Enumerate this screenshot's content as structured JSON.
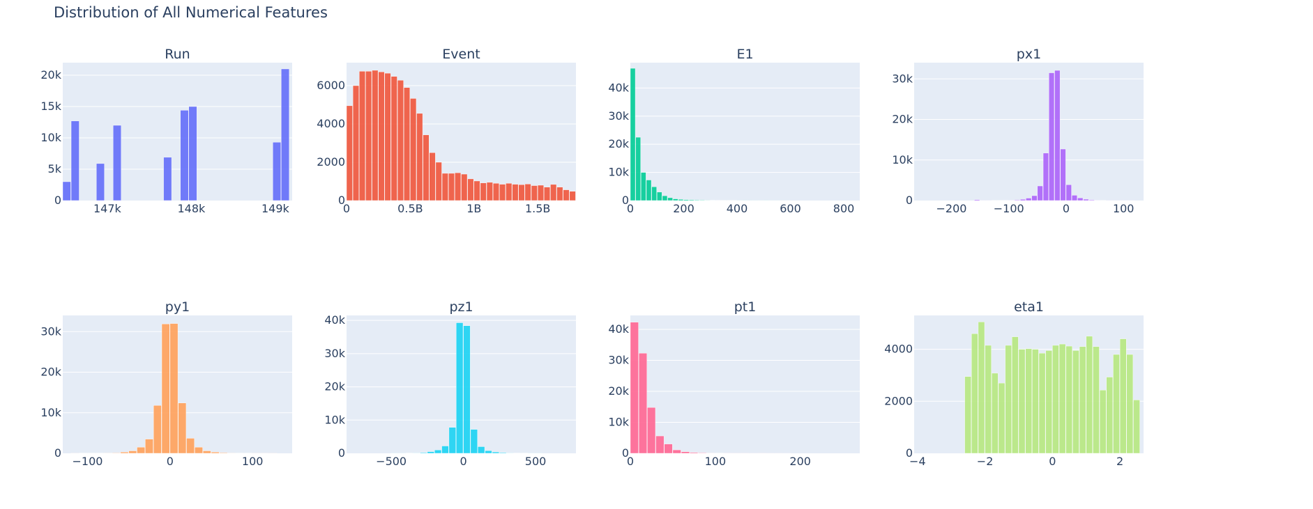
{
  "figure_title": "Distribution of All Numerical Features",
  "colors": {
    "plot_bg": "#e5ecf6",
    "grid": "#ffffff",
    "text": "#2a3f5f"
  },
  "chart_data": [
    {
      "type": "bar",
      "title": "Run",
      "color": "#636efa",
      "xlim": [
        146470,
        149200
      ],
      "ylim": [
        0,
        22000
      ],
      "x_ticks": [
        {
          "v": 147000,
          "label": "147k"
        },
        {
          "v": 148000,
          "label": "148k"
        },
        {
          "v": 149000,
          "label": "149k"
        }
      ],
      "y_ticks": [
        {
          "v": 0,
          "label": "0"
        },
        {
          "v": 5000,
          "label": "5k"
        },
        {
          "v": 10000,
          "label": "10k"
        },
        {
          "v": 15000,
          "label": "15k"
        },
        {
          "v": 20000,
          "label": "20k"
        }
      ],
      "bin_width": 100,
      "bins": [
        [
          146470,
          3000
        ],
        [
          146570,
          12700
        ],
        [
          146870,
          5900
        ],
        [
          147070,
          12000
        ],
        [
          147670,
          6900
        ],
        [
          147870,
          14400
        ],
        [
          147970,
          15000
        ],
        [
          148970,
          9300
        ],
        [
          149070,
          21000
        ]
      ]
    },
    {
      "type": "bar",
      "title": "Event",
      "color": "#ef553b",
      "xlim": [
        0,
        1800000000
      ],
      "ylim": [
        0,
        7200
      ],
      "x_ticks": [
        {
          "v": 0,
          "label": "0"
        },
        {
          "v": 500000000,
          "label": "0.5B"
        },
        {
          "v": 1000000000,
          "label": "1B"
        },
        {
          "v": 1500000000,
          "label": "1.5B"
        }
      ],
      "y_ticks": [
        {
          "v": 0,
          "label": "0"
        },
        {
          "v": 2000,
          "label": "2000"
        },
        {
          "v": 4000,
          "label": "4000"
        },
        {
          "v": 6000,
          "label": "6000"
        }
      ],
      "start": 0,
      "bin_width": 50000000,
      "values": [
        4950,
        6000,
        6750,
        6750,
        6800,
        6720,
        6650,
        6480,
        6280,
        5900,
        5330,
        4550,
        3430,
        2500,
        2000,
        1420,
        1420,
        1450,
        1380,
        1130,
        1020,
        920,
        950,
        900,
        850,
        900,
        850,
        830,
        860,
        780,
        800,
        700,
        840,
        700,
        560,
        480
      ]
    },
    {
      "type": "bar",
      "title": "E1",
      "color": "#00cc96",
      "xlim": [
        0,
        860
      ],
      "ylim": [
        0,
        49000
      ],
      "x_ticks": [
        {
          "v": 0,
          "label": "0"
        },
        {
          "v": 200,
          "label": "200"
        },
        {
          "v": 400,
          "label": "400"
        },
        {
          "v": 600,
          "label": "600"
        },
        {
          "v": 800,
          "label": "800"
        }
      ],
      "y_ticks": [
        {
          "v": 0,
          "label": "0"
        },
        {
          "v": 10000,
          "label": "10k"
        },
        {
          "v": 20000,
          "label": "20k"
        },
        {
          "v": 30000,
          "label": "30k"
        },
        {
          "v": 40000,
          "label": "40k"
        }
      ],
      "start": 0,
      "bin_width": 20,
      "values": [
        47000,
        22500,
        10000,
        7300,
        4900,
        3000,
        1700,
        1000,
        600,
        400,
        300,
        250,
        200,
        150,
        120,
        100,
        90,
        80,
        60,
        50,
        40,
        30,
        25,
        20,
        15,
        30,
        15,
        10,
        8,
        5
      ]
    },
    {
      "type": "bar",
      "title": "px1",
      "color": "#ab63fa",
      "xlim": [
        -265,
        135
      ],
      "ylim": [
        0,
        34000
      ],
      "x_ticks": [
        {
          "v": -200,
          "label": "−200"
        },
        {
          "v": -100,
          "label": "−100"
        },
        {
          "v": 0,
          "label": "0"
        },
        {
          "v": 100,
          "label": "100"
        }
      ],
      "y_ticks": [
        {
          "v": 0,
          "label": "0"
        },
        {
          "v": 10000,
          "label": "10k"
        },
        {
          "v": 20000,
          "label": "20k"
        },
        {
          "v": 30000,
          "label": "30k"
        }
      ],
      "start": -160,
      "bin_width": 10,
      "values": [
        200,
        30,
        30,
        40,
        50,
        60,
        80,
        150,
        300,
        600,
        1200,
        3600,
        11700,
        31500,
        32100,
        12700,
        3900,
        1300,
        650,
        330,
        160,
        80,
        40,
        20,
        10,
        5,
        5,
        3
      ]
    },
    {
      "type": "bar",
      "title": "py1",
      "color": "#ffa15a",
      "xlim": [
        -130,
        148
      ],
      "ylim": [
        0,
        34000
      ],
      "x_ticks": [
        {
          "v": -100,
          "label": "−100"
        },
        {
          "v": 0,
          "label": "0"
        },
        {
          "v": 100,
          "label": "100"
        }
      ],
      "y_ticks": [
        {
          "v": 0,
          "label": "0"
        },
        {
          "v": 10000,
          "label": "10k"
        },
        {
          "v": 20000,
          "label": "20k"
        },
        {
          "v": 30000,
          "label": "30k"
        }
      ],
      "start": -120,
      "bin_width": 10,
      "values": [
        30,
        40,
        50,
        60,
        80,
        100,
        300,
        600,
        1500,
        3500,
        11800,
        31900,
        32000,
        12400,
        3700,
        1500,
        600,
        300,
        150,
        80,
        50,
        40,
        30,
        30,
        20
      ]
    },
    {
      "type": "bar",
      "title": "pz1",
      "color": "#19d3f3",
      "xlim": [
        -810,
        780
      ],
      "ylim": [
        0,
        41500
      ],
      "x_ticks": [
        {
          "v": -500,
          "label": "−500"
        },
        {
          "v": 0,
          "label": "0"
        },
        {
          "v": 500,
          "label": "500"
        }
      ],
      "y_ticks": [
        {
          "v": 0,
          "label": "0"
        },
        {
          "v": 10000,
          "label": "10k"
        },
        {
          "v": 20000,
          "label": "20k"
        },
        {
          "v": 30000,
          "label": "30k"
        },
        {
          "v": 40000,
          "label": "40k"
        }
      ],
      "start": -500,
      "bin_width": 50,
      "values": [
        30,
        40,
        60,
        100,
        200,
        500,
        1000,
        2200,
        7800,
        39300,
        38400,
        7200,
        2000,
        800,
        400,
        200,
        100,
        80,
        60,
        40,
        30
      ]
    },
    {
      "type": "bar",
      "title": "pt1",
      "color": "#ff6692",
      "xlim": [
        0,
        270
      ],
      "ylim": [
        0,
        44500
      ],
      "x_ticks": [
        {
          "v": 0,
          "label": "0"
        },
        {
          "v": 100,
          "label": "100"
        },
        {
          "v": 200,
          "label": "200"
        }
      ],
      "y_ticks": [
        {
          "v": 0,
          "label": "0"
        },
        {
          "v": 10000,
          "label": "10k"
        },
        {
          "v": 20000,
          "label": "20k"
        },
        {
          "v": 30000,
          "label": "30k"
        },
        {
          "v": 40000,
          "label": "40k"
        }
      ],
      "start": 0,
      "bin_width": 10,
      "values": [
        42300,
        32300,
        14800,
        5600,
        3000,
        1100,
        500,
        250,
        150,
        100,
        60,
        40,
        30,
        20,
        15,
        30,
        10,
        8,
        5
      ]
    },
    {
      "type": "bar",
      "title": "eta1",
      "color": "#b6e880",
      "xlim": [
        -4.1,
        2.7
      ],
      "ylim": [
        0,
        5300
      ],
      "x_ticks": [
        {
          "v": -4,
          "label": "−4"
        },
        {
          "v": -2,
          "label": "−2"
        },
        {
          "v": 0,
          "label": "0"
        },
        {
          "v": 2,
          "label": "2"
        }
      ],
      "y_ticks": [
        {
          "v": 0,
          "label": "0"
        },
        {
          "v": 2000,
          "label": "2000"
        },
        {
          "v": 4000,
          "label": "4000"
        }
      ],
      "start": -2.6,
      "bin_width": 0.2,
      "values": [
        2950,
        4600,
        5050,
        4150,
        3080,
        2700,
        4150,
        4480,
        4000,
        4020,
        4000,
        3850,
        3950,
        4150,
        4200,
        4120,
        3950,
        4100,
        4500,
        4100,
        2430,
        2930,
        3800,
        4400,
        3800,
        2050
      ]
    }
  ]
}
